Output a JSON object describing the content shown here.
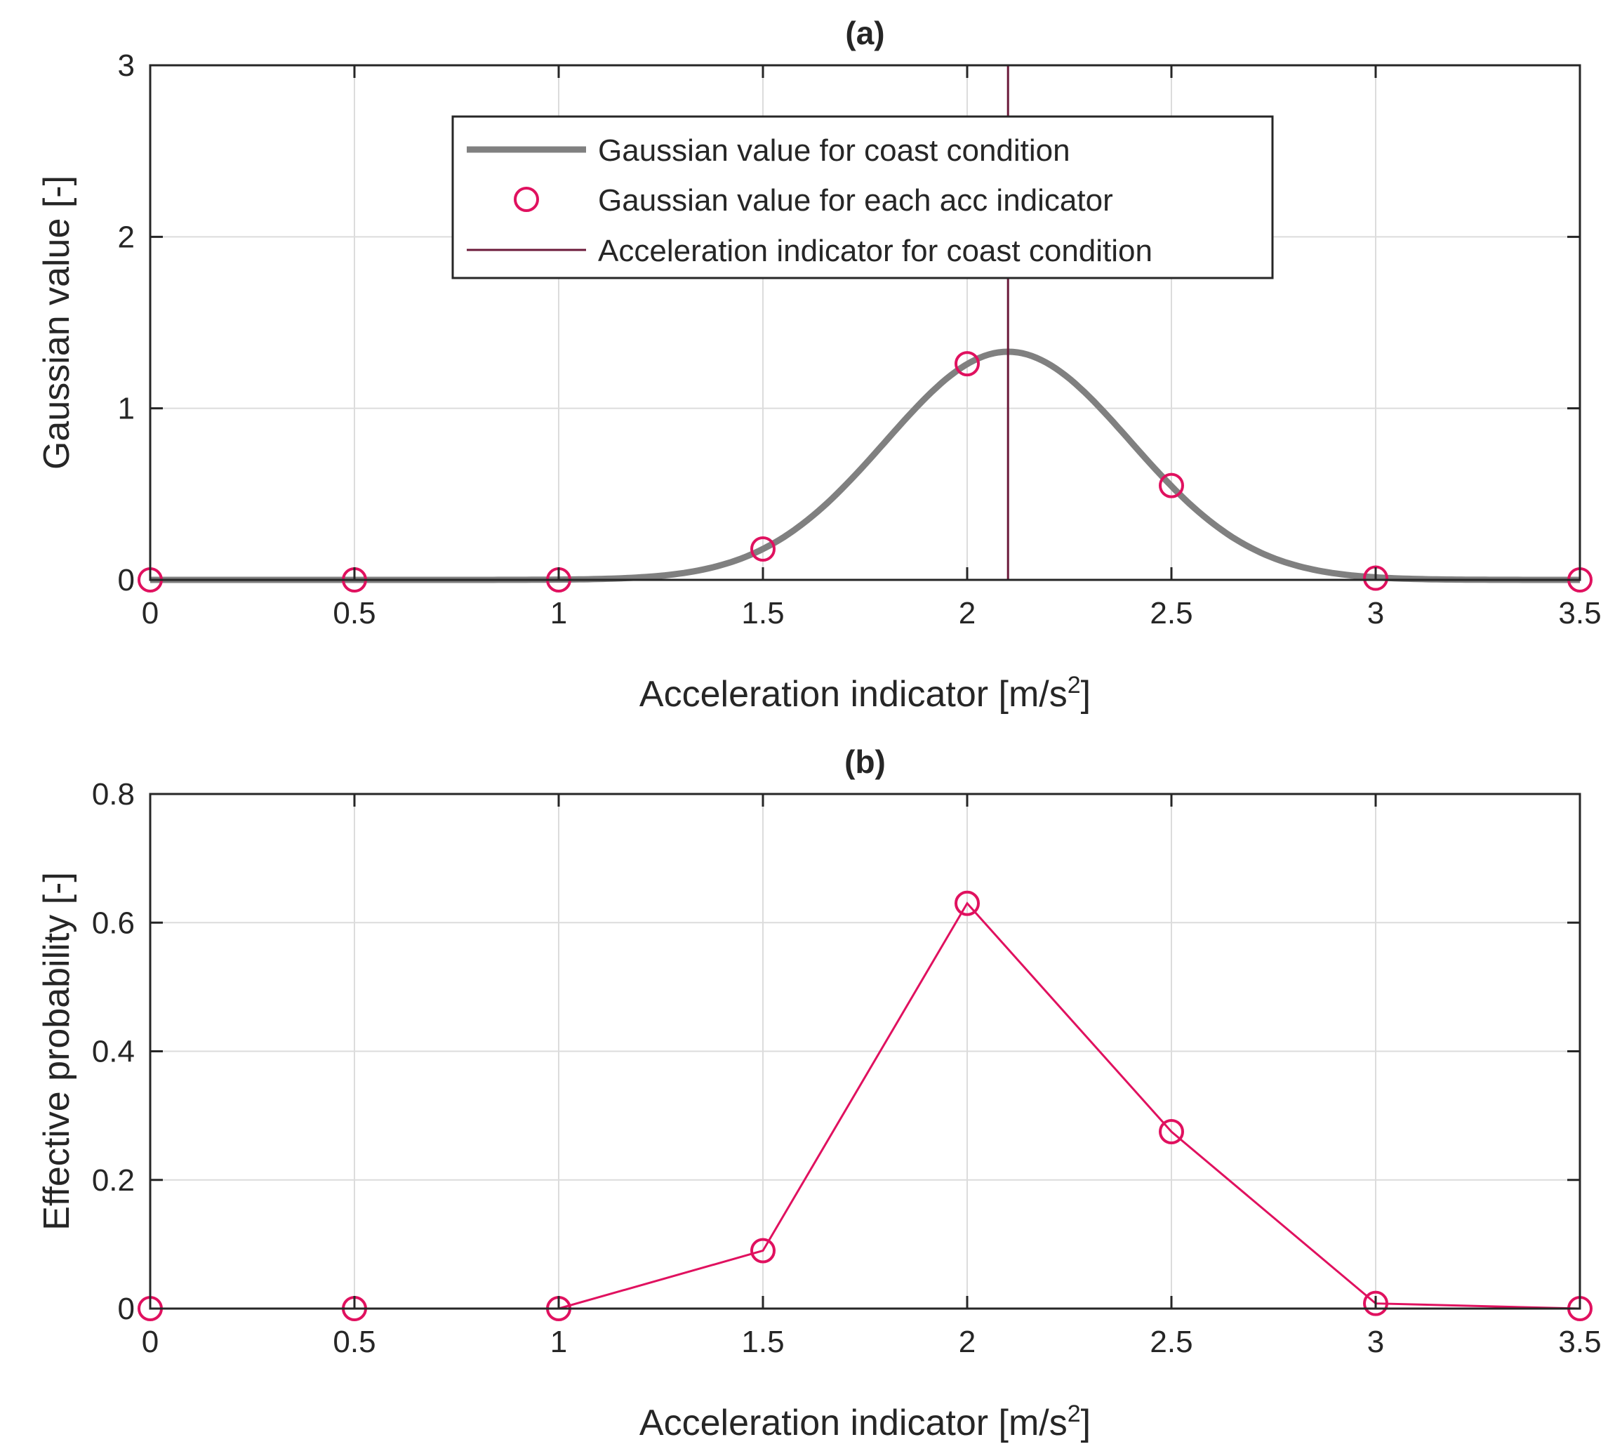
{
  "chart_data": [
    {
      "id": "a",
      "type": "line",
      "title": "(a)",
      "xlabel": "Acceleration indicator [m/s",
      "xlabel_sup": "2",
      "xlabel_end": "]",
      "ylabel": "Gaussian value [-]",
      "xlim": [
        0,
        3.5
      ],
      "ylim": [
        0,
        3
      ],
      "xticks": [
        0,
        0.5,
        1,
        1.5,
        2,
        2.5,
        3,
        3.5
      ],
      "xtick_labels": [
        "0",
        "0.5",
        "1",
        "1.5",
        "2",
        "2.5",
        "3",
        "3.5"
      ],
      "yticks": [
        0,
        1,
        2,
        3
      ],
      "ytick_labels": [
        "0",
        "1",
        "2",
        "3"
      ],
      "grid": true,
      "legend_position": "top-center",
      "series": [
        {
          "name": "Gaussian value for coast condition",
          "kind": "curve",
          "color": "#808080",
          "gaussian": {
            "mean": 2.1,
            "sigma": 0.3,
            "peak": 1.33
          },
          "x_range": [
            0,
            3.5
          ]
        },
        {
          "name": "Gaussian value for each acc indicator",
          "kind": "markers",
          "color": "#e0115f",
          "x": [
            0,
            0.5,
            1,
            1.5,
            2,
            2.5,
            3,
            3.5
          ],
          "y": [
            0,
            0,
            0,
            0.18,
            1.26,
            0.55,
            0.01,
            0
          ]
        },
        {
          "name": "Acceleration indicator for coast condition",
          "kind": "vline",
          "color": "#6b1a3a",
          "x": 2.1
        }
      ]
    },
    {
      "id": "b",
      "type": "line",
      "title": "(b)",
      "xlabel": "Acceleration indicator [m/s",
      "xlabel_sup": "2",
      "xlabel_end": "]",
      "ylabel": "Effective probability [-]",
      "xlim": [
        0,
        3.5
      ],
      "ylim": [
        0,
        0.8
      ],
      "xticks": [
        0,
        0.5,
        1,
        1.5,
        2,
        2.5,
        3,
        3.5
      ],
      "xtick_labels": [
        "0",
        "0.5",
        "1",
        "1.5",
        "2",
        "2.5",
        "3",
        "3.5"
      ],
      "yticks": [
        0,
        0.2,
        0.4,
        0.6,
        0.8
      ],
      "ytick_labels": [
        "0",
        "0.2",
        "0.4",
        "0.6",
        "0.8"
      ],
      "grid": true,
      "series": [
        {
          "name": "Effective probability",
          "kind": "line-markers",
          "color": "#e0115f",
          "x": [
            0,
            0.5,
            1,
            1.5,
            2,
            2.5,
            3,
            3.5
          ],
          "y": [
            0,
            0,
            0,
            0.09,
            0.63,
            0.275,
            0.008,
            0
          ]
        }
      ]
    }
  ]
}
